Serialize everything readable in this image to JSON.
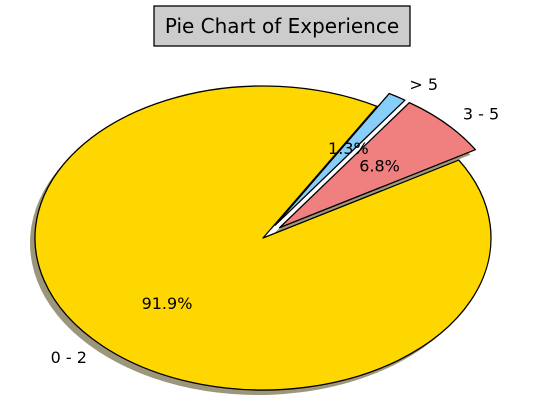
{
  "chart_data": {
    "type": "pie",
    "title": "Pie Chart of Experience",
    "labels": [
      "0 - 2",
      "3 - 5",
      "> 5"
    ],
    "values": [
      91.9,
      6.8,
      1.3
    ],
    "percent_labels": [
      "91.9%",
      "6.8%",
      "1.3%"
    ],
    "colors": [
      "#FFD700",
      "#F08080",
      "#87CEFA"
    ],
    "exploded": [
      false,
      true,
      true
    ],
    "shadow": true,
    "legend": "none",
    "grid": false
  }
}
